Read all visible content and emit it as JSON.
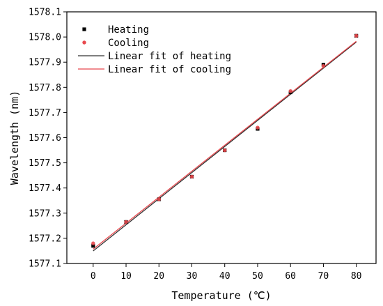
{
  "chart_data": {
    "type": "scatter",
    "xlabel": "Temperature (℃)",
    "ylabel": "Wavelength (nm)",
    "xlim": [
      -8,
      86
    ],
    "ylim": [
      1577.1,
      1578.1
    ],
    "xticks": [
      "0",
      "10",
      "20",
      "30",
      "40",
      "50",
      "60",
      "70",
      "80"
    ],
    "yticks": [
      "1577.1",
      "1577.2",
      "1577.3",
      "1577.4",
      "1577.5",
      "1577.6",
      "1577.7",
      "1577.8",
      "1577.9",
      "1578.0",
      "1578.1"
    ],
    "grid": false,
    "legend_position": "top-left",
    "series": [
      {
        "name": "Heating",
        "kind": "points",
        "marker": "square",
        "color": "#000000",
        "x": [
          0,
          10,
          20,
          30,
          40,
          50,
          60,
          70,
          80
        ],
        "y": [
          1577.17,
          1577.265,
          1577.355,
          1577.445,
          1577.55,
          1577.635,
          1577.78,
          1577.89,
          1578.005
        ]
      },
      {
        "name": "Cooling",
        "kind": "points",
        "marker": "circle",
        "color": "#e8484d",
        "x": [
          0,
          10,
          20,
          30,
          40,
          50,
          60,
          70,
          80
        ],
        "y": [
          1577.18,
          1577.265,
          1577.355,
          1577.445,
          1577.55,
          1577.64,
          1577.785,
          1577.885,
          1578.005
        ]
      },
      {
        "name": "Linear fit of heating",
        "kind": "line",
        "color": "#333333",
        "x": [
          0,
          80
        ],
        "y": [
          1577.15,
          1577.98
        ]
      },
      {
        "name": "Linear fit of cooling",
        "kind": "line",
        "color": "#e8484d",
        "x": [
          0,
          80
        ],
        "y": [
          1577.157,
          1577.983
        ]
      }
    ]
  }
}
